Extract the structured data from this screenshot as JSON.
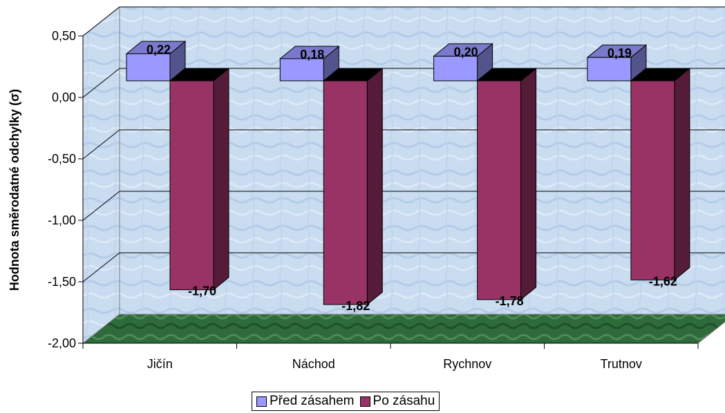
{
  "chart_data": {
    "type": "bar",
    "title": "",
    "xlabel": "",
    "ylabel": "Hodnota směrodatné odchylky (σ)",
    "ylim": [
      -2.0,
      0.5
    ],
    "yticks": [
      "0,50",
      "0,00",
      "-0,50",
      "-1,00",
      "-1,50",
      "-2,00"
    ],
    "ytick_values": [
      0.5,
      0.0,
      -0.5,
      -1.0,
      -1.5,
      -2.0
    ],
    "categories": [
      "Jičín",
      "Náchod",
      "Rychnov",
      "Trutnov"
    ],
    "series": [
      {
        "name": "Před zásahem",
        "values": [
          0.22,
          0.18,
          0.2,
          0.19
        ],
        "labels": [
          "0,22",
          "0,18",
          "0,20",
          "0,19"
        ],
        "color": "#9999ff"
      },
      {
        "name": "Po zásahu",
        "values": [
          -1.7,
          -1.82,
          -1.78,
          -1.62
        ],
        "labels": [
          "-1,70",
          "-1,82",
          "-1,78",
          "-1,62"
        ],
        "color": "#993366"
      }
    ],
    "legend": "bottom",
    "grid": true,
    "style": "3d"
  }
}
